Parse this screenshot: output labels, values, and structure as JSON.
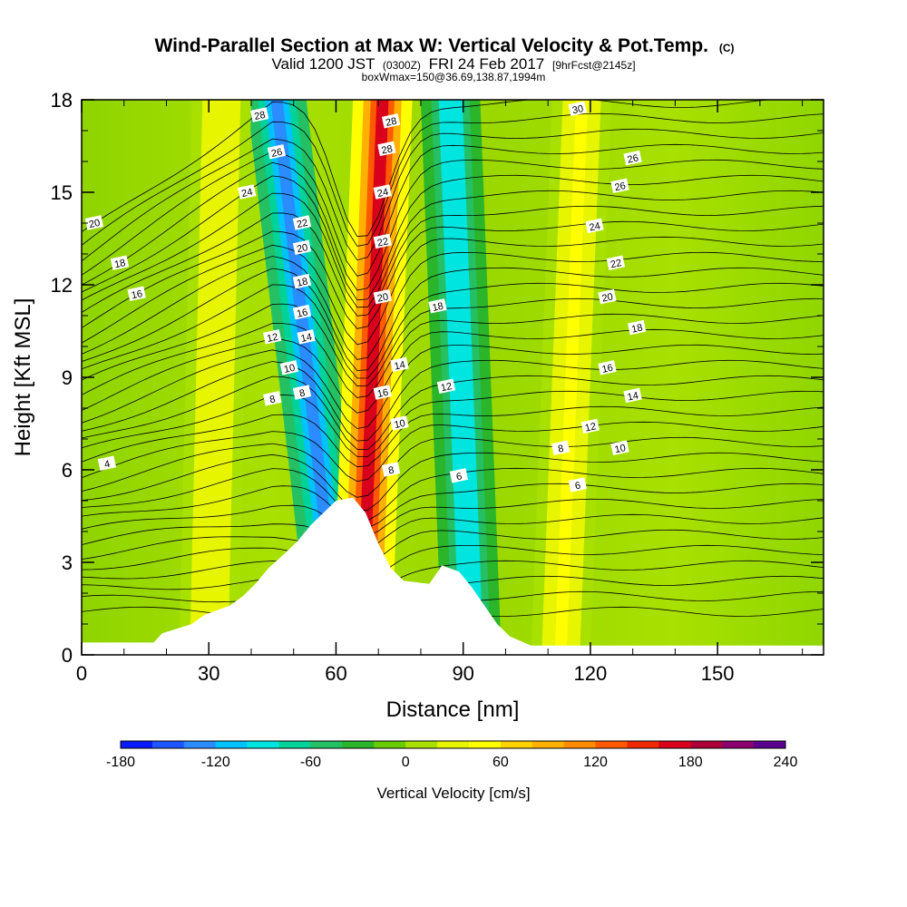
{
  "chart_data": {
    "type": "heatmap",
    "title": "Wind-Parallel Section at Max W: Vertical Velocity & Pot.Temp.",
    "title_mark": "(C)",
    "subtitle_parts": [
      "Valid 1200 JST",
      "(0300Z)",
      "FRI 24 Feb 2017",
      "[9hrFcst@2145z]"
    ],
    "subtitle2": "boxWmax=150@36.69,138.87,1994m",
    "xlabel": "Distance [nm]",
    "ylabel": "Height [Kft MSL]",
    "xlim": [
      0,
      175
    ],
    "ylim": [
      0,
      18
    ],
    "x_ticks": [
      "0",
      "30",
      "60",
      "90",
      "120",
      "150"
    ],
    "y_ticks": [
      "0",
      "3",
      "6",
      "9",
      "12",
      "15",
      "18"
    ],
    "colorbar": {
      "label": "Vertical Velocity [cm/s]",
      "range": [
        -180,
        240
      ],
      "step": 20,
      "tick_labels": [
        "-180",
        "-120",
        "-60",
        "0",
        "60",
        "120",
        "180",
        "240"
      ],
      "colors": [
        "#0a1aff",
        "#1f55ff",
        "#2b8cff",
        "#00c2ff",
        "#00e5e0",
        "#00d39a",
        "#25c064",
        "#2ab52a",
        "#68cc00",
        "#a8e000",
        "#e8f500",
        "#ffff00",
        "#ffd200",
        "#ffb000",
        "#ff8c00",
        "#ff5a00",
        "#f02800",
        "#d8001a",
        "#b0003a",
        "#8c006e",
        "#5c0090"
      ]
    },
    "vertical_velocity_bands": [
      {
        "x_bottom": 61,
        "x_top": 46,
        "w": -130,
        "label": "downdraft"
      },
      {
        "x_bottom": 66,
        "x_top": 71,
        "w": 160,
        "label": "updraft"
      },
      {
        "x_bottom": 92,
        "x_top": 87,
        "w": -100,
        "label": "downdraft"
      },
      {
        "x_bottom": 30,
        "x_top": 33,
        "w": 35,
        "label": "weak updraft"
      },
      {
        "x_bottom": 113,
        "x_top": 118,
        "w": 40,
        "label": "weak updraft"
      }
    ],
    "terrain_kft": [
      [
        0,
        0.4
      ],
      [
        17,
        0.4
      ],
      [
        19,
        0.7
      ],
      [
        26,
        1.0
      ],
      [
        29,
        1.3
      ],
      [
        35,
        1.6
      ],
      [
        38,
        1.9
      ],
      [
        41,
        2.3
      ],
      [
        44,
        2.8
      ],
      [
        48,
        3.3
      ],
      [
        51,
        3.7
      ],
      [
        54,
        4.2
      ],
      [
        57,
        4.6
      ],
      [
        60,
        5.0
      ],
      [
        64,
        5.1
      ],
      [
        67,
        4.6
      ],
      [
        70,
        3.6
      ],
      [
        73,
        2.8
      ],
      [
        76,
        2.4
      ],
      [
        82,
        2.3
      ],
      [
        85,
        2.9
      ],
      [
        89,
        2.7
      ],
      [
        92,
        2.2
      ],
      [
        95,
        1.6
      ],
      [
        98,
        1.0
      ],
      [
        101,
        0.6
      ],
      [
        106,
        0.3
      ],
      [
        175,
        0.3
      ]
    ],
    "theta_contours": [
      {
        "value": 4,
        "label_pos": [
          6,
          6.2
        ]
      },
      {
        "value": 6,
        "label_pos": [
          117,
          5.5
        ]
      },
      {
        "value": 6,
        "label_pos": [
          89,
          5.8
        ]
      },
      {
        "value": 8,
        "label_pos": [
          45,
          8.3
        ]
      },
      {
        "value": 8,
        "label_pos": [
          52,
          8.5
        ]
      },
      {
        "value": 8,
        "label_pos": [
          73,
          6.0
        ]
      },
      {
        "value": 8,
        "label_pos": [
          113,
          6.7
        ]
      },
      {
        "value": 10,
        "label_pos": [
          49,
          9.3
        ]
      },
      {
        "value": 10,
        "label_pos": [
          75,
          7.5
        ]
      },
      {
        "value": 10,
        "label_pos": [
          127,
          6.7
        ]
      },
      {
        "value": 12,
        "label_pos": [
          45,
          10.3
        ]
      },
      {
        "value": 12,
        "label_pos": [
          86,
          8.7
        ]
      },
      {
        "value": 12,
        "label_pos": [
          120,
          7.4
        ]
      },
      {
        "value": 14,
        "label_pos": [
          53,
          10.3
        ]
      },
      {
        "value": 14,
        "label_pos": [
          75,
          9.4
        ]
      },
      {
        "value": 14,
        "label_pos": [
          130,
          8.4
        ]
      },
      {
        "value": 16,
        "label_pos": [
          13,
          11.7
        ]
      },
      {
        "value": 16,
        "label_pos": [
          52,
          11.1
        ]
      },
      {
        "value": 16,
        "label_pos": [
          71,
          8.5
        ]
      },
      {
        "value": 16,
        "label_pos": [
          124,
          9.3
        ]
      },
      {
        "value": 18,
        "label_pos": [
          9,
          12.7
        ]
      },
      {
        "value": 18,
        "label_pos": [
          52,
          12.1
        ]
      },
      {
        "value": 18,
        "label_pos": [
          84,
          11.3
        ]
      },
      {
        "value": 18,
        "label_pos": [
          131,
          10.6
        ]
      },
      {
        "value": 20,
        "label_pos": [
          3,
          14.0
        ]
      },
      {
        "value": 20,
        "label_pos": [
          52,
          13.2
        ]
      },
      {
        "value": 20,
        "label_pos": [
          71,
          11.6
        ]
      },
      {
        "value": 20,
        "label_pos": [
          124,
          11.6
        ]
      },
      {
        "value": 22,
        "label_pos": [
          52,
          14.0
        ]
      },
      {
        "value": 22,
        "label_pos": [
          71,
          13.4
        ]
      },
      {
        "value": 22,
        "label_pos": [
          126,
          12.7
        ]
      },
      {
        "value": 24,
        "label_pos": [
          39,
          15.0
        ]
      },
      {
        "value": 24,
        "label_pos": [
          71,
          15.0
        ]
      },
      {
        "value": 24,
        "label_pos": [
          121,
          13.9
        ]
      },
      {
        "value": 26,
        "label_pos": [
          46,
          16.3
        ]
      },
      {
        "value": 26,
        "label_pos": [
          127,
          15.2
        ]
      },
      {
        "value": 26,
        "label_pos": [
          130,
          16.1
        ]
      },
      {
        "value": 28,
        "label_pos": [
          42,
          17.5
        ]
      },
      {
        "value": 28,
        "label_pos": [
          72,
          16.4
        ]
      },
      {
        "value": 28,
        "label_pos": [
          73,
          17.3
        ]
      },
      {
        "value": 30,
        "label_pos": [
          117,
          17.7
        ]
      }
    ]
  }
}
